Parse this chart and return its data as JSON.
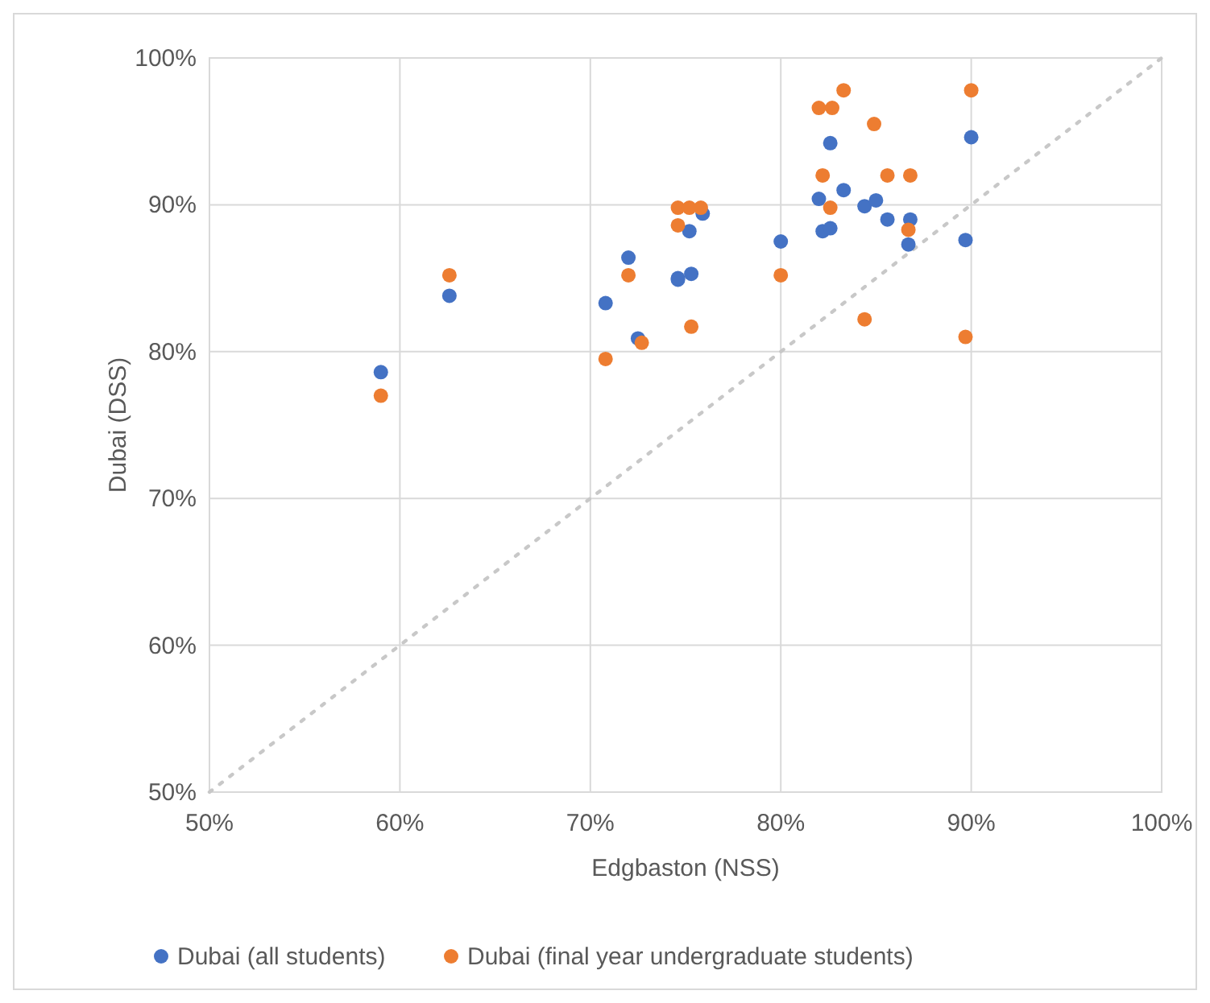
{
  "chart_data": {
    "type": "scatter",
    "xlabel": "Edgbaston (NSS)",
    "ylabel": "Dubai (DSS)",
    "xlim": [
      50,
      100
    ],
    "ylim": [
      50,
      100
    ],
    "xticks": [
      {
        "value": 50,
        "label": "50%"
      },
      {
        "value": 60,
        "label": "60%"
      },
      {
        "value": 70,
        "label": "70%"
      },
      {
        "value": 80,
        "label": "80%"
      },
      {
        "value": 90,
        "label": "90%"
      },
      {
        "value": 100,
        "label": "100%"
      }
    ],
    "yticks": [
      {
        "value": 50,
        "label": "50%"
      },
      {
        "value": 60,
        "label": "60%"
      },
      {
        "value": 70,
        "label": "70%"
      },
      {
        "value": 80,
        "label": "80%"
      },
      {
        "value": 90,
        "label": "90%"
      },
      {
        "value": 100,
        "label": "100%"
      }
    ],
    "grid": true,
    "legend": "bottom",
    "marker": "circle",
    "series": [
      {
        "type": "line",
        "color": "#c8c8c8",
        "line_style": "dotted",
        "marker": "none",
        "x": [
          50,
          100
        ],
        "values": [
          50,
          100
        ]
      },
      {
        "name": "Dubai (all students)",
        "color": "#4472c4",
        "x": [
          59.0,
          62.6,
          70.8,
          72.0,
          72.5,
          75.9,
          75.2,
          74.6,
          74.6,
          75.3,
          80.0,
          82.6,
          83.3,
          82.0,
          82.2,
          82.6,
          84.4,
          85.0,
          85.6,
          86.8,
          86.7,
          89.7,
          90.0
        ],
        "values": [
          78.6,
          83.8,
          83.3,
          86.4,
          80.9,
          89.4,
          88.2,
          85.0,
          84.9,
          85.3,
          87.5,
          94.2,
          91.0,
          90.4,
          88.2,
          88.4,
          89.9,
          90.3,
          89.0,
          89.0,
          87.3,
          87.6,
          94.6
        ]
      },
      {
        "name": "Dubai (final year undergraduate students)",
        "color": "#ed7d31",
        "x": [
          59.0,
          62.6,
          70.8,
          72.0,
          72.7,
          74.6,
          75.2,
          75.8,
          74.6,
          75.3,
          80.0,
          82.0,
          82.7,
          83.3,
          82.2,
          82.6,
          84.9,
          85.6,
          86.8,
          86.7,
          84.4,
          89.7,
          90.0
        ],
        "values": [
          77.0,
          85.2,
          79.5,
          85.2,
          80.6,
          89.8,
          89.8,
          89.8,
          88.6,
          81.7,
          85.2,
          96.6,
          96.6,
          97.8,
          92.0,
          89.8,
          95.5,
          92.0,
          92.0,
          88.3,
          82.2,
          81.0,
          97.8
        ]
      }
    ]
  }
}
